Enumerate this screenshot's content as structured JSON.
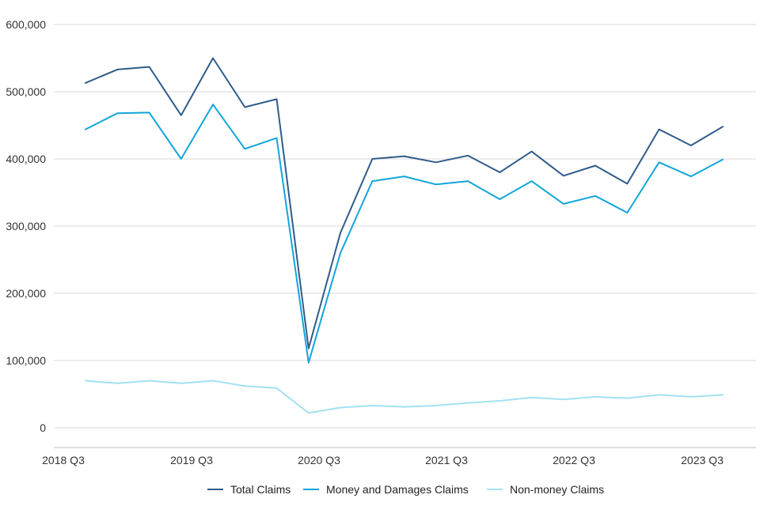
{
  "chart_data": {
    "type": "line",
    "title": "",
    "xlabel": "",
    "ylabel": "",
    "ylim": [
      0,
      600000
    ],
    "y_ticks": [
      0,
      100000,
      200000,
      300000,
      400000,
      500000,
      600000
    ],
    "y_tick_labels": [
      "0",
      "100,000",
      "200,000",
      "300,000",
      "400,000",
      "500,000",
      "600,000"
    ],
    "x_tick_labels": [
      "2018 Q3",
      "2019 Q3",
      "2020 Q3",
      "2021 Q3",
      "2022 Q3",
      "2023 Q3"
    ],
    "categories": [
      "2018 Q3",
      "2018 Q4",
      "2019 Q1",
      "2019 Q2",
      "2019 Q3",
      "2019 Q4",
      "2020 Q1",
      "2020 Q2",
      "2020 Q3",
      "2020 Q4",
      "2021 Q1",
      "2021 Q2",
      "2021 Q3",
      "2021 Q4",
      "2022 Q1",
      "2022 Q2",
      "2022 Q3",
      "2022 Q4",
      "2023 Q1",
      "2023 Q2",
      "2023 Q3"
    ],
    "grid": "horizontal",
    "legend_position": "bottom",
    "series": [
      {
        "name": "Total Claims",
        "color": "#2f5c8a",
        "values": [
          513000,
          533000,
          537000,
          465000,
          550000,
          477000,
          489000,
          118000,
          290000,
          400000,
          404000,
          395000,
          405000,
          380000,
          411000,
          375000,
          390000,
          363000,
          444000,
          420000,
          448000
        ]
      },
      {
        "name": "Money and Damages Claims",
        "color": "#12a5db",
        "values": [
          444000,
          468000,
          469000,
          400000,
          481000,
          415000,
          431000,
          97000,
          260000,
          367000,
          374000,
          362000,
          367000,
          340000,
          367000,
          333000,
          345000,
          320000,
          395000,
          374000,
          399000
        ]
      },
      {
        "name": "Non-money Claims",
        "color": "#a2e1f2",
        "values": [
          70000,
          66000,
          70000,
          66000,
          70000,
          62000,
          59000,
          22000,
          30000,
          33000,
          31000,
          33000,
          37000,
          40000,
          45000,
          42000,
          46000,
          44000,
          49000,
          46000,
          49000
        ]
      }
    ]
  }
}
